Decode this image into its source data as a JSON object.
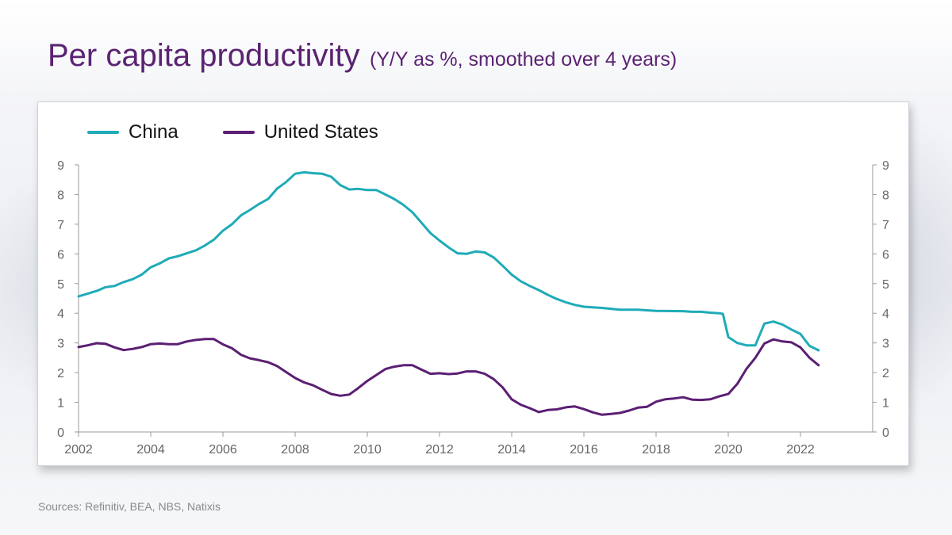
{
  "title": "Per capita productivity",
  "subtitle": "(Y/Y as %, smoothed over 4 years)",
  "source": "Sources: Refinitiv, BEA, NBS, Natixis",
  "colors": {
    "title": "#5b2372",
    "china": "#1fabb8",
    "us": "#5b1f73",
    "axis": "#9a9a9a",
    "tick_text": "#666666"
  },
  "chart_data": {
    "type": "line",
    "xlim": [
      2002,
      2024
    ],
    "ylim": [
      0,
      9
    ],
    "x_ticks": [
      2002,
      2004,
      2006,
      2008,
      2010,
      2012,
      2014,
      2016,
      2018,
      2020,
      2022
    ],
    "x_tick_labels": [
      "2002",
      "2004",
      "2006",
      "2008",
      "2010",
      "2012",
      "2014",
      "2016",
      "2018",
      "2020",
      "2022"
    ],
    "y_ticks": [
      0,
      1,
      2,
      3,
      4,
      5,
      6,
      7,
      8,
      9
    ],
    "y_tick_labels": [
      "0",
      "1",
      "2",
      "3",
      "4",
      "5",
      "6",
      "7",
      "8",
      "9"
    ],
    "legend_position": "top-left",
    "grid": false,
    "secondary_y_axis": true,
    "series": [
      {
        "name": "China",
        "color": "#1fabb8",
        "points": [
          [
            2002.0,
            4.57
          ],
          [
            2002.5,
            4.75
          ],
          [
            2002.75,
            4.88
          ],
          [
            2003.0,
            4.92
          ],
          [
            2003.25,
            5.05
          ],
          [
            2003.5,
            5.15
          ],
          [
            2003.75,
            5.3
          ],
          [
            2004.0,
            5.55
          ],
          [
            2004.25,
            5.68
          ],
          [
            2004.5,
            5.85
          ],
          [
            2004.75,
            5.92
          ],
          [
            2005.0,
            6.02
          ],
          [
            2005.25,
            6.12
          ],
          [
            2005.5,
            6.28
          ],
          [
            2005.75,
            6.48
          ],
          [
            2006.0,
            6.78
          ],
          [
            2006.25,
            7.0
          ],
          [
            2006.5,
            7.3
          ],
          [
            2006.75,
            7.48
          ],
          [
            2007.0,
            7.68
          ],
          [
            2007.25,
            7.85
          ],
          [
            2007.5,
            8.2
          ],
          [
            2007.75,
            8.42
          ],
          [
            2008.0,
            8.7
          ],
          [
            2008.25,
            8.75
          ],
          [
            2008.5,
            8.72
          ],
          [
            2008.75,
            8.7
          ],
          [
            2009.0,
            8.6
          ],
          [
            2009.25,
            8.32
          ],
          [
            2009.5,
            8.17
          ],
          [
            2009.75,
            8.19
          ],
          [
            2010.0,
            8.15
          ],
          [
            2010.25,
            8.15
          ],
          [
            2010.5,
            8.0
          ],
          [
            2010.75,
            7.85
          ],
          [
            2011.0,
            7.65
          ],
          [
            2011.25,
            7.4
          ],
          [
            2011.5,
            7.05
          ],
          [
            2011.75,
            6.7
          ],
          [
            2012.0,
            6.45
          ],
          [
            2012.25,
            6.22
          ],
          [
            2012.5,
            6.02
          ],
          [
            2012.75,
            6.0
          ],
          [
            2013.0,
            6.08
          ],
          [
            2013.25,
            6.05
          ],
          [
            2013.5,
            5.88
          ],
          [
            2013.75,
            5.6
          ],
          [
            2014.0,
            5.3
          ],
          [
            2014.25,
            5.08
          ],
          [
            2014.5,
            4.92
          ],
          [
            2014.75,
            4.78
          ],
          [
            2015.0,
            4.62
          ],
          [
            2015.25,
            4.48
          ],
          [
            2015.5,
            4.37
          ],
          [
            2015.75,
            4.28
          ],
          [
            2016.0,
            4.22
          ],
          [
            2016.25,
            4.2
          ],
          [
            2016.5,
            4.18
          ],
          [
            2016.75,
            4.15
          ],
          [
            2017.0,
            4.12
          ],
          [
            2017.5,
            4.12
          ],
          [
            2017.75,
            4.1
          ],
          [
            2018.0,
            4.08
          ],
          [
            2018.75,
            4.07
          ],
          [
            2019.0,
            4.05
          ],
          [
            2019.25,
            4.05
          ],
          [
            2019.5,
            4.02
          ],
          [
            2019.75,
            4.0
          ],
          [
            2019.85,
            3.98
          ],
          [
            2020.0,
            3.2
          ],
          [
            2020.25,
            3.0
          ],
          [
            2020.5,
            2.92
          ],
          [
            2020.75,
            2.92
          ],
          [
            2021.0,
            3.65
          ],
          [
            2021.25,
            3.72
          ],
          [
            2021.5,
            3.62
          ],
          [
            2021.75,
            3.45
          ],
          [
            2022.0,
            3.3
          ],
          [
            2022.25,
            2.9
          ],
          [
            2022.5,
            2.75
          ]
        ]
      },
      {
        "name": "United States",
        "color": "#5b1f73",
        "points": [
          [
            2002.0,
            2.86
          ],
          [
            2002.25,
            2.92
          ],
          [
            2002.5,
            2.99
          ],
          [
            2002.75,
            2.97
          ],
          [
            2003.0,
            2.85
          ],
          [
            2003.25,
            2.76
          ],
          [
            2003.5,
            2.8
          ],
          [
            2003.75,
            2.86
          ],
          [
            2004.0,
            2.96
          ],
          [
            2004.25,
            2.98
          ],
          [
            2004.5,
            2.96
          ],
          [
            2004.75,
            2.96
          ],
          [
            2005.0,
            3.05
          ],
          [
            2005.25,
            3.1
          ],
          [
            2005.5,
            3.13
          ],
          [
            2005.75,
            3.13
          ],
          [
            2006.0,
            2.95
          ],
          [
            2006.25,
            2.82
          ],
          [
            2006.5,
            2.6
          ],
          [
            2006.75,
            2.48
          ],
          [
            2007.0,
            2.42
          ],
          [
            2007.25,
            2.35
          ],
          [
            2007.5,
            2.22
          ],
          [
            2007.75,
            2.02
          ],
          [
            2008.0,
            1.82
          ],
          [
            2008.25,
            1.67
          ],
          [
            2008.5,
            1.57
          ],
          [
            2008.75,
            1.42
          ],
          [
            2009.0,
            1.28
          ],
          [
            2009.25,
            1.22
          ],
          [
            2009.5,
            1.26
          ],
          [
            2009.75,
            1.48
          ],
          [
            2010.0,
            1.72
          ],
          [
            2010.25,
            1.92
          ],
          [
            2010.5,
            2.12
          ],
          [
            2010.75,
            2.2
          ],
          [
            2011.0,
            2.25
          ],
          [
            2011.25,
            2.25
          ],
          [
            2011.5,
            2.1
          ],
          [
            2011.75,
            1.96
          ],
          [
            2012.0,
            1.98
          ],
          [
            2012.25,
            1.95
          ],
          [
            2012.5,
            1.97
          ],
          [
            2012.75,
            2.04
          ],
          [
            2013.0,
            2.04
          ],
          [
            2013.25,
            1.96
          ],
          [
            2013.5,
            1.78
          ],
          [
            2013.75,
            1.5
          ],
          [
            2014.0,
            1.1
          ],
          [
            2014.25,
            0.92
          ],
          [
            2014.5,
            0.8
          ],
          [
            2014.75,
            0.67
          ],
          [
            2015.0,
            0.74
          ],
          [
            2015.25,
            0.76
          ],
          [
            2015.5,
            0.83
          ],
          [
            2015.75,
            0.86
          ],
          [
            2016.0,
            0.77
          ],
          [
            2016.25,
            0.66
          ],
          [
            2016.5,
            0.58
          ],
          [
            2016.75,
            0.61
          ],
          [
            2017.0,
            0.64
          ],
          [
            2017.25,
            0.72
          ],
          [
            2017.5,
            0.82
          ],
          [
            2017.75,
            0.85
          ],
          [
            2018.0,
            1.02
          ],
          [
            2018.25,
            1.1
          ],
          [
            2018.5,
            1.13
          ],
          [
            2018.75,
            1.17
          ],
          [
            2019.0,
            1.09
          ],
          [
            2019.25,
            1.08
          ],
          [
            2019.5,
            1.1
          ],
          [
            2019.75,
            1.2
          ],
          [
            2020.0,
            1.28
          ],
          [
            2020.25,
            1.62
          ],
          [
            2020.5,
            2.12
          ],
          [
            2020.75,
            2.5
          ],
          [
            2021.0,
            2.98
          ],
          [
            2021.25,
            3.12
          ],
          [
            2021.5,
            3.05
          ],
          [
            2021.75,
            3.02
          ],
          [
            2022.0,
            2.85
          ],
          [
            2022.25,
            2.5
          ],
          [
            2022.5,
            2.25
          ]
        ]
      }
    ]
  }
}
